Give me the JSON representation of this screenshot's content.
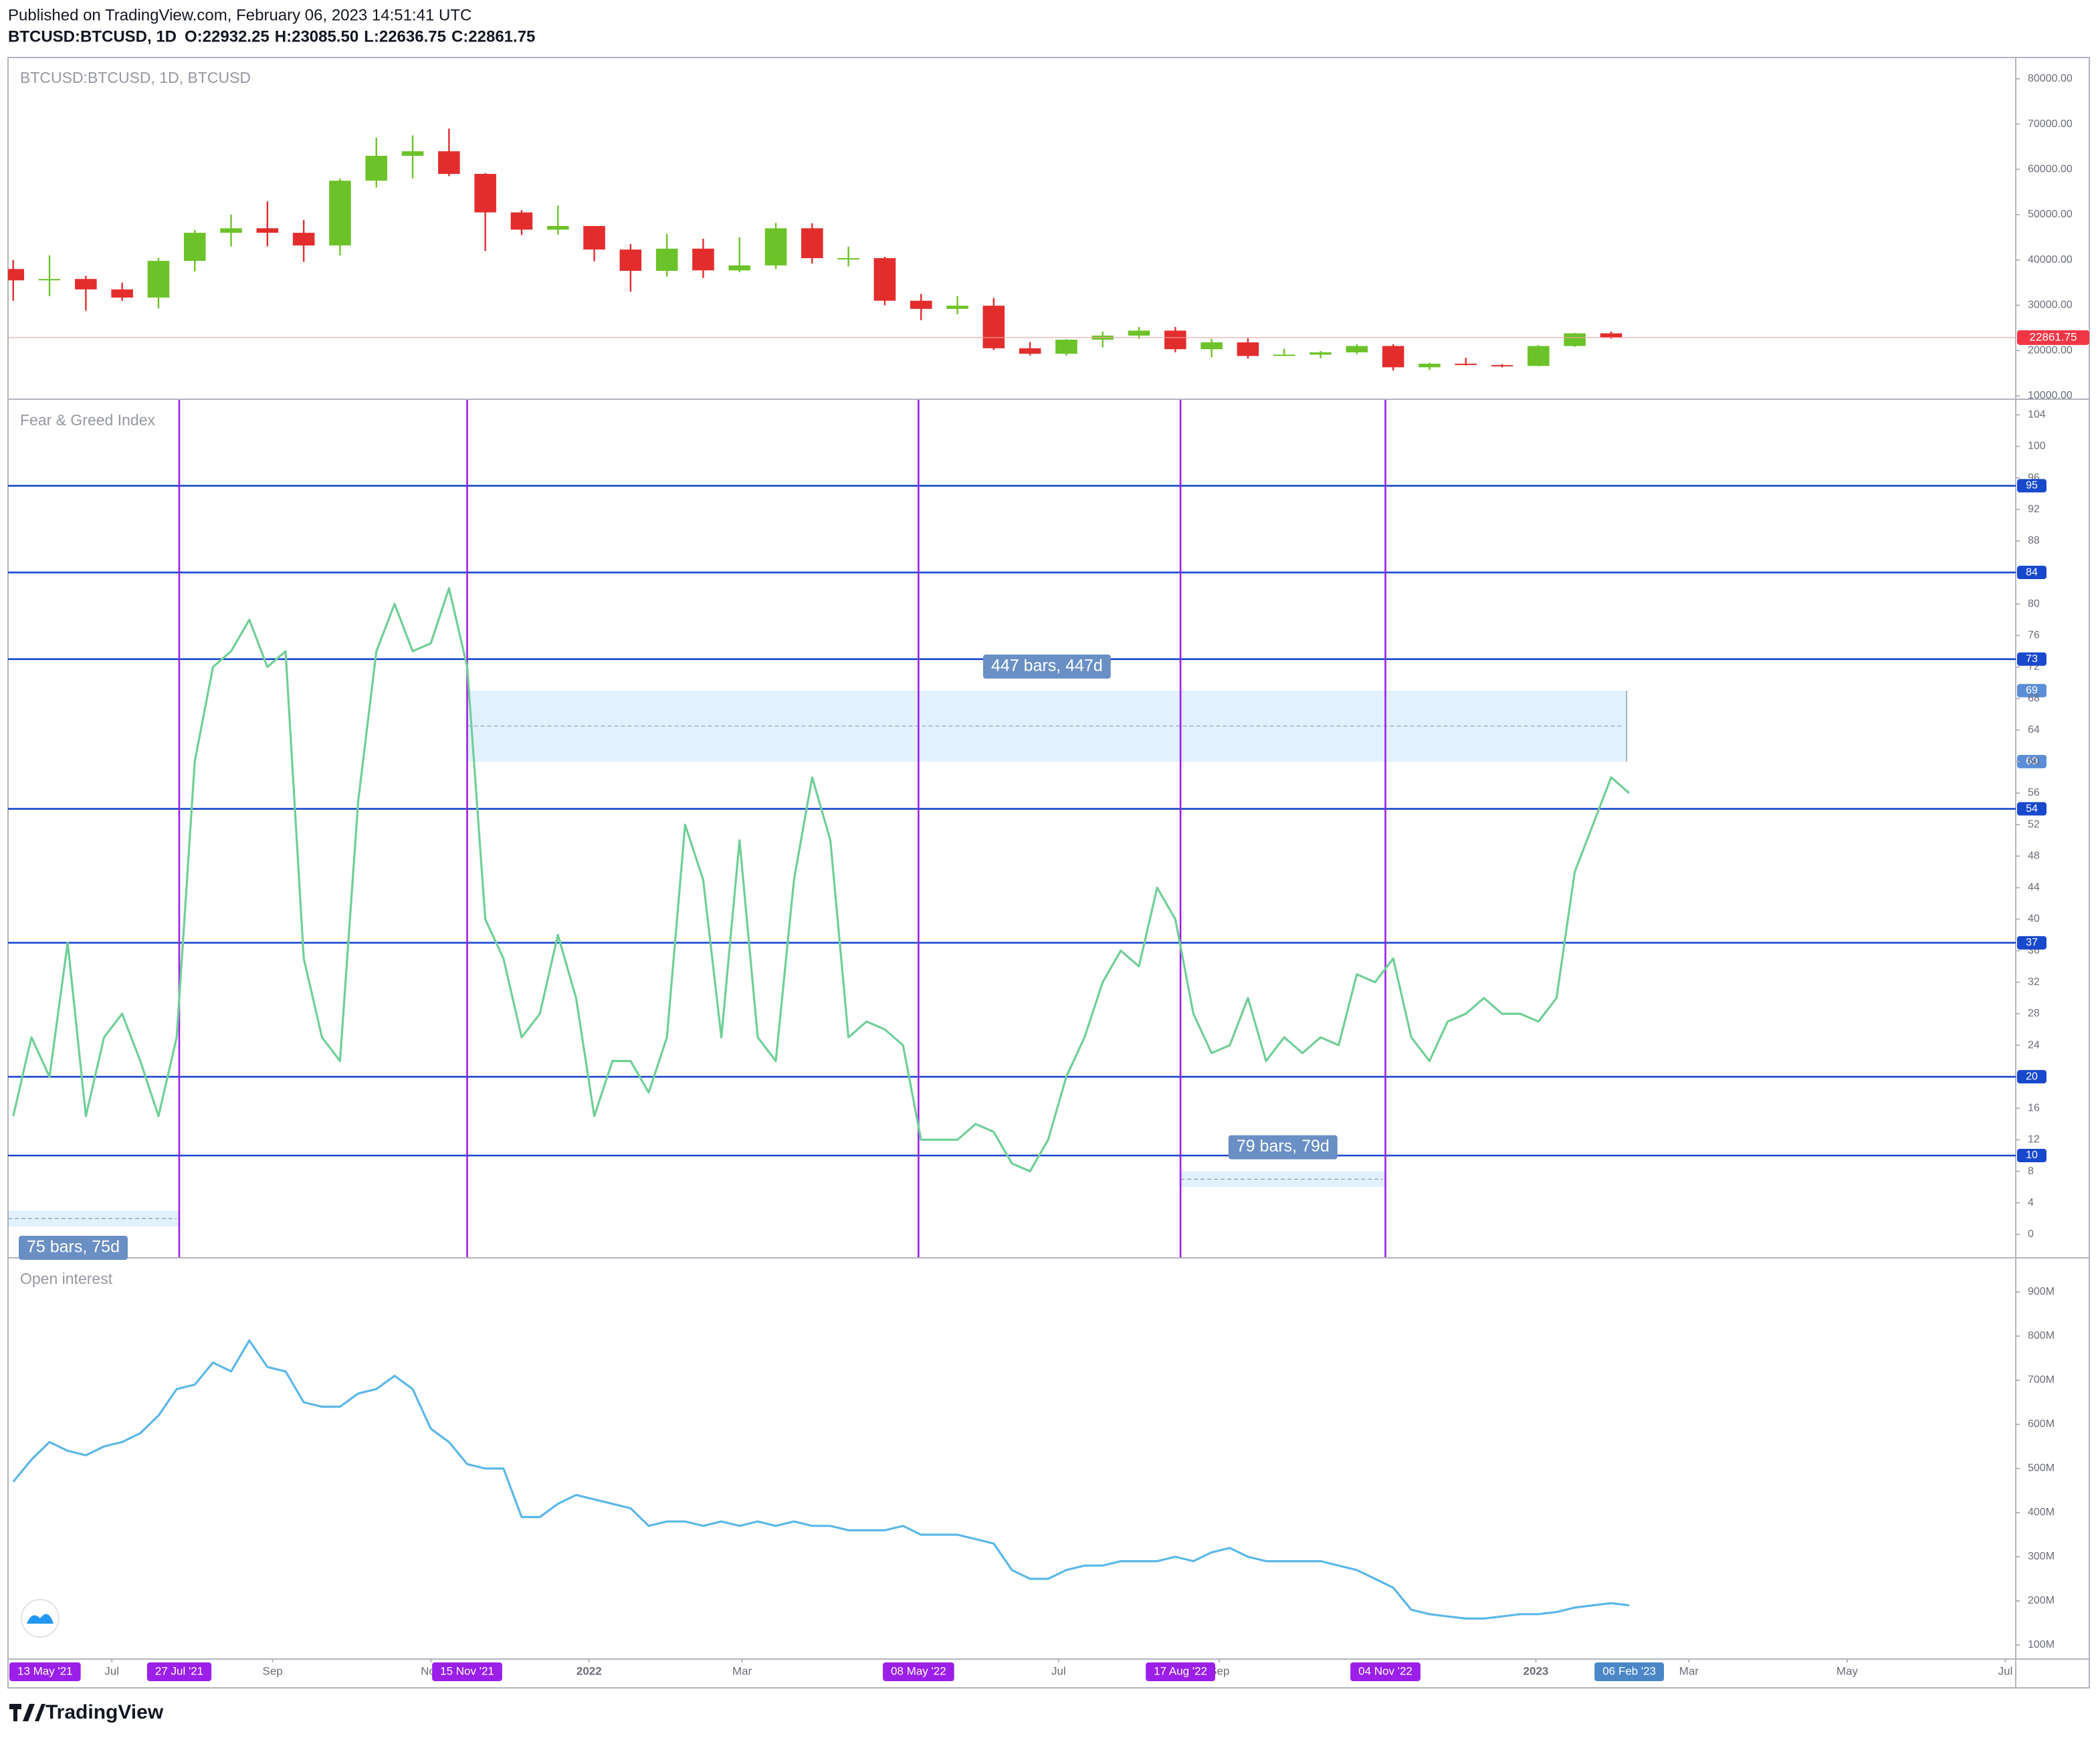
{
  "header": {
    "published": "Published on TradingView.com, February 06, 2023 14:51:41 UTC",
    "symbol": "BTCUSD:BTCUSD, 1D",
    "ohlc": [
      "O:22932.25",
      "H:23085.50",
      "L:22636.75",
      "C:22861.75"
    ]
  },
  "footer": {
    "logo": "TradingView"
  },
  "chart_data": [
    {
      "type": "candlestick",
      "title": "BTCUSD:BTCUSD, 1D, BTCUSD",
      "xlim": [
        "2021-05-22",
        "2023-07-05"
      ],
      "x": [
        "2021-05-24",
        "2021-06-07",
        "2021-06-21",
        "2021-07-05",
        "2021-07-19",
        "2021-08-02",
        "2021-08-16",
        "2021-08-30",
        "2021-09-13",
        "2021-09-27",
        "2021-10-11",
        "2021-10-25",
        "2021-11-08",
        "2021-11-22",
        "2021-12-06",
        "2021-12-20",
        "2022-01-03",
        "2022-01-17",
        "2022-01-31",
        "2022-02-14",
        "2022-02-28",
        "2022-03-14",
        "2022-03-28",
        "2022-04-11",
        "2022-04-25",
        "2022-05-09",
        "2022-05-23",
        "2022-06-06",
        "2022-06-20",
        "2022-07-04",
        "2022-07-18",
        "2022-08-01",
        "2022-08-15",
        "2022-08-29",
        "2022-09-12",
        "2022-09-26",
        "2022-10-10",
        "2022-10-24",
        "2022-11-07",
        "2022-11-21",
        "2022-12-05",
        "2022-12-19",
        "2023-01-02",
        "2023-01-16",
        "2023-01-30"
      ],
      "open": [
        38000,
        35500,
        35800,
        33500,
        31700,
        39800,
        46000,
        47000,
        46000,
        43200,
        57500,
        63000,
        64000,
        59000,
        50500,
        46700,
        47500,
        42300,
        37600,
        42500,
        37700,
        38800,
        47000,
        40400,
        40400,
        31000,
        29200,
        29900,
        20500,
        19300,
        22400,
        23300,
        24400,
        20300,
        21800,
        18800,
        19100,
        19600,
        21000,
        16300,
        17100,
        16800,
        16600,
        21000,
        23800
      ],
      "high": [
        40000,
        41000,
        36500,
        35000,
        40500,
        46600,
        50000,
        52900,
        48800,
        58000,
        67000,
        67500,
        69000,
        59200,
        51000,
        52000,
        47500,
        43500,
        45800,
        44700,
        45000,
        48200,
        48100,
        42900,
        40700,
        32500,
        32000,
        31600,
        21900,
        22500,
        24200,
        25200,
        25200,
        22600,
        22700,
        20400,
        19900,
        21400,
        21400,
        17300,
        18400,
        17000,
        21200,
        23900,
        24200
      ],
      "low": [
        31000,
        32000,
        28800,
        31000,
        29300,
        37500,
        43000,
        43000,
        39600,
        41000,
        56000,
        58000,
        58500,
        42000,
        45500,
        45600,
        39700,
        33000,
        36300,
        36000,
        37300,
        38000,
        39200,
        38600,
        30000,
        26700,
        28000,
        20100,
        18900,
        18900,
        20700,
        22600,
        19600,
        18500,
        18200,
        18800,
        18300,
        19200,
        15600,
        15700,
        16700,
        16300,
        16500,
        20800,
        22600
      ],
      "close": [
        35500,
        35800,
        33500,
        31700,
        39800,
        46000,
        47000,
        46000,
        43200,
        57500,
        63000,
        64000,
        59000,
        50500,
        46700,
        47500,
        42300,
        37600,
        42500,
        37700,
        38800,
        47000,
        40400,
        40400,
        31000,
        29200,
        29900,
        20500,
        19300,
        22400,
        23300,
        24400,
        20300,
        21800,
        18800,
        19100,
        19600,
        21000,
        16300,
        17100,
        16800,
        16600,
        21000,
        23800,
        22861.75
      ],
      "up_color": "#6cc329",
      "down_color": "#e32d2d",
      "ylim": [
        9400,
        84700
      ],
      "yticks": [
        {
          "value": 10000,
          "label": "10000.00"
        },
        {
          "value": 20000,
          "label": "20000.00"
        },
        {
          "value": 30000,
          "label": "30000.00"
        },
        {
          "value": 40000,
          "label": "40000.00"
        },
        {
          "value": 50000,
          "label": "50000.00"
        },
        {
          "value": 60000,
          "label": "60000.00"
        },
        {
          "value": 70000,
          "label": "70000.00"
        },
        {
          "value": 80000,
          "label": "80000.00"
        }
      ],
      "last_price": 22861.75
    },
    {
      "type": "line",
      "title": "Fear & Greed Index",
      "xlim": [
        "2021-05-22",
        "2023-07-05"
      ],
      "x": [
        "2021-05-24",
        "2021-05-31",
        "2021-06-07",
        "2021-06-14",
        "2021-06-21",
        "2021-06-28",
        "2021-07-05",
        "2021-07-12",
        "2021-07-19",
        "2021-07-26",
        "2021-08-02",
        "2021-08-09",
        "2021-08-16",
        "2021-08-23",
        "2021-08-30",
        "2021-09-06",
        "2021-09-13",
        "2021-09-20",
        "2021-09-27",
        "2021-10-04",
        "2021-10-11",
        "2021-10-18",
        "2021-10-25",
        "2021-11-01",
        "2021-11-08",
        "2021-11-15",
        "2021-11-22",
        "2021-11-29",
        "2021-12-06",
        "2021-12-13",
        "2021-12-20",
        "2021-12-27",
        "2022-01-03",
        "2022-01-10",
        "2022-01-17",
        "2022-01-24",
        "2022-01-31",
        "2022-02-07",
        "2022-02-14",
        "2022-02-21",
        "2022-02-28",
        "2022-03-07",
        "2022-03-14",
        "2022-03-21",
        "2022-03-28",
        "2022-04-04",
        "2022-04-11",
        "2022-04-18",
        "2022-04-25",
        "2022-05-02",
        "2022-05-09",
        "2022-05-16",
        "2022-05-23",
        "2022-05-30",
        "2022-06-06",
        "2022-06-13",
        "2022-06-20",
        "2022-06-27",
        "2022-07-04",
        "2022-07-11",
        "2022-07-18",
        "2022-07-25",
        "2022-08-01",
        "2022-08-08",
        "2022-08-15",
        "2022-08-22",
        "2022-08-29",
        "2022-09-05",
        "2022-09-12",
        "2022-09-19",
        "2022-09-26",
        "2022-10-03",
        "2022-10-10",
        "2022-10-17",
        "2022-10-24",
        "2022-10-31",
        "2022-11-07",
        "2022-11-14",
        "2022-11-21",
        "2022-11-28",
        "2022-12-05",
        "2022-12-12",
        "2022-12-19",
        "2022-12-26",
        "2023-01-02",
        "2023-01-09",
        "2023-01-16",
        "2023-01-23",
        "2023-01-30",
        "2023-02-06"
      ],
      "values": [
        15,
        25,
        20,
        37,
        15,
        25,
        28,
        22,
        15,
        25,
        60,
        72,
        74,
        78,
        72,
        74,
        35,
        25,
        22,
        55,
        74,
        80,
        74,
        75,
        82,
        72,
        40,
        35,
        25,
        28,
        38,
        30,
        15,
        22,
        22,
        18,
        25,
        52,
        45,
        25,
        50,
        25,
        22,
        45,
        58,
        50,
        25,
        27,
        26,
        24,
        12,
        12,
        12,
        14,
        13,
        9,
        8,
        12,
        20,
        25,
        32,
        36,
        34,
        44,
        40,
        28,
        23,
        24,
        30,
        22,
        25,
        23,
        25,
        24,
        33,
        32,
        35,
        25,
        22,
        27,
        28,
        30,
        28,
        28,
        27,
        30,
        46,
        52,
        58,
        56
      ],
      "color": "#6fcf97",
      "ylim": [
        -2.9,
        105.9
      ],
      "yticks": [
        0,
        4,
        8,
        12,
        16,
        20,
        24,
        28,
        32,
        36,
        40,
        44,
        48,
        52,
        56,
        60,
        64,
        68,
        72,
        76,
        80,
        84,
        88,
        92,
        96,
        100,
        104
      ],
      "levels": [
        95,
        84,
        73,
        54,
        37,
        20,
        10
      ],
      "level_color": "#1848cc",
      "vlines": [
        {
          "x": "2021-07-27",
          "label": "27 Jul '21"
        },
        {
          "x": "2021-11-15",
          "label": "15 Nov '21"
        },
        {
          "x": "2022-05-08",
          "label": "08 May '22"
        },
        {
          "x": "2022-08-17",
          "label": "17 Aug '22"
        },
        {
          "x": "2022-11-04",
          "label": "04 Nov '22"
        }
      ],
      "vline_color": "#9b1fe8",
      "measures": [
        {
          "label": "447 bars, 447d",
          "x": [
            "2021-11-15",
            "2023-02-05"
          ],
          "y": [
            69,
            60
          ],
          "label_position": "above",
          "axis_labels": true
        },
        {
          "label": "75 bars, 75d",
          "x": [
            "2021-05-13",
            "2021-07-27"
          ],
          "y": [
            3,
            1
          ],
          "label_position": "below",
          "axis_labels": false
        },
        {
          "label": "79 bars, 79d",
          "x": [
            "2022-08-17",
            "2022-11-04"
          ],
          "y": [
            8,
            6
          ],
          "label_position": "above",
          "axis_labels": false
        }
      ]
    },
    {
      "type": "line",
      "title": "Open interest",
      "xlim": [
        "2021-05-22",
        "2023-07-05"
      ],
      "x": [
        "2021-05-24",
        "2021-05-31",
        "2021-06-07",
        "2021-06-14",
        "2021-06-21",
        "2021-06-28",
        "2021-07-05",
        "2021-07-12",
        "2021-07-19",
        "2021-07-26",
        "2021-08-02",
        "2021-08-09",
        "2021-08-16",
        "2021-08-23",
        "2021-08-30",
        "2021-09-06",
        "2021-09-13",
        "2021-09-20",
        "2021-09-27",
        "2021-10-04",
        "2021-10-11",
        "2021-10-18",
        "2021-10-25",
        "2021-11-01",
        "2021-11-08",
        "2021-11-15",
        "2021-11-22",
        "2021-11-29",
        "2021-12-06",
        "2021-12-13",
        "2021-12-20",
        "2021-12-27",
        "2022-01-03",
        "2022-01-10",
        "2022-01-17",
        "2022-01-24",
        "2022-01-31",
        "2022-02-07",
        "2022-02-14",
        "2022-02-21",
        "2022-02-28",
        "2022-03-07",
        "2022-03-14",
        "2022-03-21",
        "2022-03-28",
        "2022-04-04",
        "2022-04-11",
        "2022-04-18",
        "2022-04-25",
        "2022-05-02",
        "2022-05-09",
        "2022-05-16",
        "2022-05-23",
        "2022-05-30",
        "2022-06-06",
        "2022-06-13",
        "2022-06-20",
        "2022-06-27",
        "2022-07-04",
        "2022-07-11",
        "2022-07-18",
        "2022-07-25",
        "2022-08-01",
        "2022-08-08",
        "2022-08-15",
        "2022-08-22",
        "2022-08-29",
        "2022-09-05",
        "2022-09-12",
        "2022-09-19",
        "2022-09-26",
        "2022-10-03",
        "2022-10-10",
        "2022-10-17",
        "2022-10-24",
        "2022-10-31",
        "2022-11-07",
        "2022-11-14",
        "2022-11-21",
        "2022-11-28",
        "2022-12-05",
        "2022-12-12",
        "2022-12-19",
        "2022-12-26",
        "2023-01-02",
        "2023-01-09",
        "2023-01-16",
        "2023-01-23",
        "2023-01-30",
        "2023-02-06"
      ],
      "values": [
        470,
        520,
        560,
        540,
        530,
        550,
        560,
        580,
        620,
        680,
        690,
        740,
        720,
        790,
        730,
        720,
        650,
        640,
        640,
        670,
        680,
        710,
        680,
        590,
        560,
        510,
        500,
        500,
        390,
        390,
        420,
        440,
        430,
        420,
        410,
        370,
        380,
        380,
        370,
        380,
        370,
        380,
        370,
        380,
        370,
        370,
        360,
        360,
        360,
        370,
        350,
        350,
        350,
        340,
        330,
        270,
        250,
        250,
        270,
        280,
        280,
        290,
        290,
        290,
        300,
        290,
        310,
        320,
        300,
        290,
        290,
        290,
        290,
        280,
        270,
        250,
        230,
        180,
        170,
        165,
        160,
        160,
        165,
        170,
        170,
        175,
        185,
        190,
        195,
        190
      ],
      "color": "#5bb8e8",
      "ylim": [
        69.7,
        975.8
      ],
      "yticks": [
        {
          "value": 100,
          "label": "100M"
        },
        {
          "value": 200,
          "label": "200M"
        },
        {
          "value": 300,
          "label": "300M"
        },
        {
          "value": 400,
          "label": "400M"
        },
        {
          "value": 500,
          "label": "500M"
        },
        {
          "value": 600,
          "label": "600M"
        },
        {
          "value": 700,
          "label": "700M"
        },
        {
          "value": 800,
          "label": "800M"
        },
        {
          "value": 900,
          "label": "900M"
        }
      ],
      "xticks": [
        {
          "value": "2021-07-01",
          "label": "Jul"
        },
        {
          "value": "2021-09-01",
          "label": "Sep"
        },
        {
          "value": "2021-11-01",
          "label": "Nov"
        },
        {
          "value": "2022-01-01",
          "label": "2022"
        },
        {
          "value": "2022-03-01",
          "label": "Mar"
        },
        {
          "value": "2022-07-01",
          "label": "Jul"
        },
        {
          "value": "2022-09-01",
          "label": "Sep"
        },
        {
          "value": "2023-01-01",
          "label": "2023"
        },
        {
          "value": "2023-03-01",
          "label": "Mar"
        },
        {
          "value": "2023-05-01",
          "label": "May"
        },
        {
          "value": "2023-07-01",
          "label": "Jul"
        }
      ],
      "date_labels": [
        {
          "x": "2021-05-13",
          "label": "13 May '21",
          "color": "#9b1fe8"
        },
        {
          "x": "2023-02-06",
          "label": "06 Feb '23",
          "color": "#4a86c8"
        }
      ]
    }
  ]
}
